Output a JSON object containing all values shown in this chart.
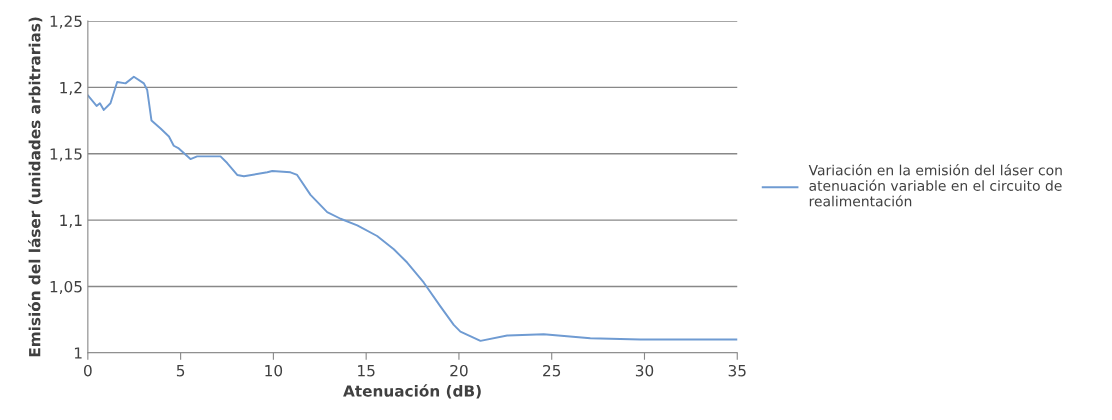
{
  "chart_data": {
    "type": "line",
    "xlabel": "Atenuación (dB)",
    "ylabel": "Emisión del láser (unidades arbitrarias)",
    "xlim": [
      0,
      35
    ],
    "xticks": [
      0,
      5,
      10,
      15,
      20,
      25,
      30,
      35
    ],
    "ylim": [
      1,
      1.25
    ],
    "yticks": [
      {
        "value": 1,
        "label": "1"
      },
      {
        "value": 1.05,
        "label": "1,05"
      },
      {
        "value": 1.1,
        "label": "1,1"
      },
      {
        "value": 1.15,
        "label": "1,15"
      },
      {
        "value": 1.2,
        "label": "1,2"
      },
      {
        "value": 1.25,
        "label": "1,25"
      }
    ],
    "grid": "y",
    "legend": "right",
    "marker": "none",
    "line_style": "solid",
    "series": [
      {
        "name": "Variación en la emisión del láser con atenuación variable en el circuito de realimentación",
        "color": "#6f9bd2",
        "x": [
          0,
          0.47,
          0.65,
          0.86,
          1.22,
          1.58,
          2.03,
          2.48,
          3.02,
          3.2,
          3.43,
          3.92,
          4.37,
          4.63,
          4.9,
          5.53,
          5.89,
          7.15,
          7.51,
          8.05,
          8.41,
          9.67,
          9.94,
          10.92,
          11.28,
          12.0,
          12.9,
          13.62,
          14.52,
          15.59,
          16.49,
          17.21,
          18.1,
          19.0,
          19.72,
          20.08,
          21.16,
          22.6,
          24.57,
          27.08,
          29.78,
          35
        ],
        "values": [
          1.194,
          1.186,
          1.188,
          1.183,
          1.188,
          1.204,
          1.203,
          1.208,
          1.203,
          1.198,
          1.175,
          1.169,
          1.163,
          1.156,
          1.154,
          1.146,
          1.148,
          1.148,
          1.143,
          1.134,
          1.133,
          1.136,
          1.137,
          1.136,
          1.134,
          1.119,
          1.106,
          1.101,
          1.096,
          1.088,
          1.078,
          1.068,
          1.053,
          1.035,
          1.021,
          1.016,
          1.009,
          1.013,
          1.014,
          1.011,
          1.01,
          1.01
        ]
      }
    ]
  }
}
